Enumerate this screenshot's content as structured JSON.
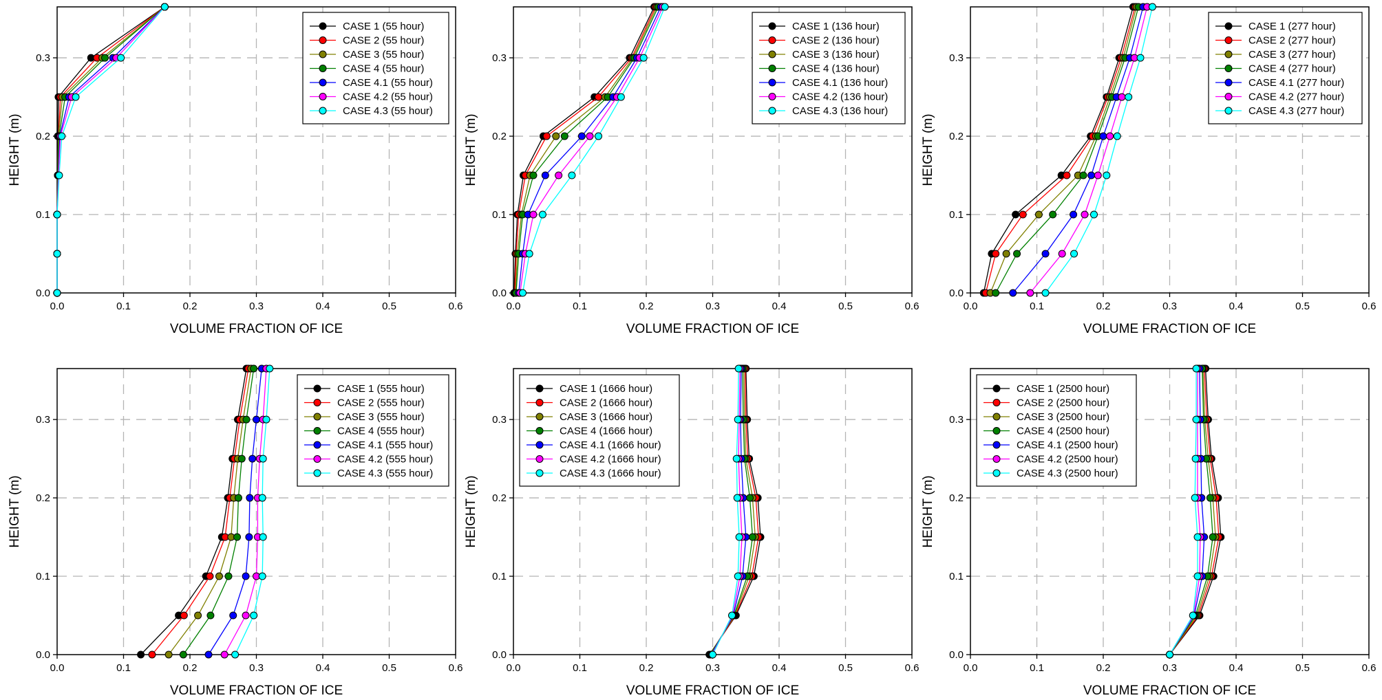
{
  "series_names": [
    "CASE 1",
    "CASE 2",
    "CASE 3",
    "CASE 4",
    "CASE 4.1",
    "CASE 4.2",
    "CASE 4.3"
  ],
  "series_colors": [
    "#000000",
    "#ff0000",
    "#808000",
    "#008000",
    "#0000ff",
    "#ff00ff",
    "#00ffff"
  ],
  "chart_data": [
    {
      "type": "line",
      "xlabel": "VOLUME FRACTION OF ICE",
      "ylabel": "HEIGHT (m)",
      "xlim": [
        0,
        0.6
      ],
      "ylim": [
        0,
        0.365
      ],
      "xticks": [
        "0.0",
        "0.1",
        "0.2",
        "0.3",
        "0.4",
        "0.5",
        "0.6"
      ],
      "yticks": [
        "0.0",
        "0.1",
        "0.2",
        "0.3"
      ],
      "grid": true,
      "legend_position": "top-right",
      "y": [
        0.0,
        0.05,
        0.1,
        0.15,
        0.2,
        0.25,
        0.3,
        0.365
      ],
      "series": [
        {
          "name": "CASE 1 (55 hour)",
          "x": [
            0,
            0,
            0,
            0.001,
            0.001,
            0.002,
            0.051,
            0.162
          ]
        },
        {
          "name": "CASE 2 (55 hour)",
          "x": [
            0,
            0,
            0,
            0.001,
            0.002,
            0.005,
            0.06,
            0.162
          ]
        },
        {
          "name": "CASE 3 (55 hour)",
          "x": [
            0,
            0,
            0,
            0.001,
            0.002,
            0.008,
            0.068,
            0.162
          ]
        },
        {
          "name": "CASE 4 (55 hour)",
          "x": [
            0,
            0,
            0,
            0.001,
            0.003,
            0.012,
            0.072,
            0.162
          ]
        },
        {
          "name": "CASE 4.1 (55 hour)",
          "x": [
            0,
            0,
            0,
            0.002,
            0.004,
            0.018,
            0.084,
            0.162
          ]
        },
        {
          "name": "CASE 4.2 (55 hour)",
          "x": [
            0,
            0,
            0,
            0.002,
            0.005,
            0.022,
            0.089,
            0.162
          ]
        },
        {
          "name": "CASE 4.3 (55 hour)",
          "x": [
            0,
            0,
            0,
            0.003,
            0.007,
            0.028,
            0.096,
            0.162
          ]
        }
      ]
    },
    {
      "type": "line",
      "xlabel": "VOLUME FRACTION OF ICE",
      "ylabel": "HEIGHT (m)",
      "xlim": [
        0,
        0.6
      ],
      "ylim": [
        0,
        0.365
      ],
      "xticks": [
        "0.0",
        "0.1",
        "0.2",
        "0.3",
        "0.4",
        "0.5",
        "0.6"
      ],
      "yticks": [
        "0.0",
        "0.1",
        "0.2",
        "0.3"
      ],
      "grid": true,
      "legend_position": "top-right",
      "y": [
        0.0,
        0.05,
        0.1,
        0.15,
        0.2,
        0.25,
        0.3,
        0.365
      ],
      "series": [
        {
          "name": "CASE 1 (136 hour)",
          "x": [
            0.001,
            0.003,
            0.006,
            0.015,
            0.045,
            0.122,
            0.175,
            0.212
          ]
        },
        {
          "name": "CASE 2 (136 hour)",
          "x": [
            0.002,
            0.004,
            0.008,
            0.018,
            0.05,
            0.128,
            0.178,
            0.214
          ]
        },
        {
          "name": "CASE 3 (136 hour)",
          "x": [
            0.003,
            0.006,
            0.012,
            0.025,
            0.064,
            0.138,
            0.18,
            0.216
          ]
        },
        {
          "name": "CASE 4 (136 hour)",
          "x": [
            0.004,
            0.008,
            0.014,
            0.03,
            0.077,
            0.142,
            0.182,
            0.218
          ]
        },
        {
          "name": "CASE 4.1 (136 hour)",
          "x": [
            0.008,
            0.014,
            0.022,
            0.048,
            0.103,
            0.15,
            0.186,
            0.222
          ]
        },
        {
          "name": "CASE 4.2 (136 hour)",
          "x": [
            0.01,
            0.018,
            0.03,
            0.068,
            0.115,
            0.156,
            0.19,
            0.225
          ]
        },
        {
          "name": "CASE 4.3 (136 hour)",
          "x": [
            0.014,
            0.024,
            0.044,
            0.088,
            0.128,
            0.162,
            0.196,
            0.228
          ]
        }
      ]
    },
    {
      "type": "line",
      "xlabel": "VOLUME FRACTION OF ICE",
      "ylabel": "HEIGHT (m)",
      "xlim": [
        0,
        0.6
      ],
      "ylim": [
        0,
        0.365
      ],
      "xticks": [
        "0.0",
        "0.1",
        "0.2",
        "0.3",
        "0.4",
        "0.5",
        "0.6"
      ],
      "yticks": [
        "0.0",
        "0.1",
        "0.2",
        "0.3"
      ],
      "grid": true,
      "legend_position": "top-right",
      "y": [
        0.0,
        0.05,
        0.1,
        0.15,
        0.2,
        0.25,
        0.3,
        0.365
      ],
      "series": [
        {
          "name": "CASE 1 (277 hour)",
          "x": [
            0.02,
            0.032,
            0.068,
            0.137,
            0.181,
            0.205,
            0.224,
            0.245
          ]
        },
        {
          "name": "CASE 2 (277 hour)",
          "x": [
            0.023,
            0.038,
            0.079,
            0.145,
            0.184,
            0.207,
            0.227,
            0.248
          ]
        },
        {
          "name": "CASE 3 (277 hour)",
          "x": [
            0.03,
            0.054,
            0.103,
            0.162,
            0.189,
            0.21,
            0.23,
            0.25
          ]
        },
        {
          "name": "CASE 4 (277 hour)",
          "x": [
            0.038,
            0.07,
            0.124,
            0.17,
            0.192,
            0.213,
            0.233,
            0.253
          ]
        },
        {
          "name": "CASE 4.1 (277 hour)",
          "x": [
            0.064,
            0.113,
            0.155,
            0.182,
            0.2,
            0.22,
            0.24,
            0.26
          ]
        },
        {
          "name": "CASE 4.2 (277 hour)",
          "x": [
            0.09,
            0.138,
            0.172,
            0.192,
            0.21,
            0.228,
            0.247,
            0.266
          ]
        },
        {
          "name": "CASE 4.3 (277 hour)",
          "x": [
            0.113,
            0.156,
            0.186,
            0.205,
            0.221,
            0.238,
            0.256,
            0.274
          ]
        }
      ]
    },
    {
      "type": "line",
      "xlabel": "VOLUME FRACTION OF ICE",
      "ylabel": "HEIGHT (m)",
      "xlim": [
        0,
        0.6
      ],
      "ylim": [
        0,
        0.365
      ],
      "xticks": [
        "0.0",
        "0.1",
        "0.2",
        "0.3",
        "0.4",
        "0.5",
        "0.6"
      ],
      "yticks": [
        "0.0",
        "0.1",
        "0.2",
        "0.3"
      ],
      "grid": true,
      "legend_position": "top-right",
      "y": [
        0.0,
        0.05,
        0.1,
        0.15,
        0.2,
        0.25,
        0.3,
        0.365
      ],
      "series": [
        {
          "name": "CASE 1 (555 hour)",
          "x": [
            0.126,
            0.183,
            0.224,
            0.248,
            0.257,
            0.264,
            0.272,
            0.285
          ]
        },
        {
          "name": "CASE 2 (555 hour)",
          "x": [
            0.143,
            0.191,
            0.23,
            0.253,
            0.26,
            0.267,
            0.275,
            0.288
          ]
        },
        {
          "name": "CASE 3 (555 hour)",
          "x": [
            0.168,
            0.212,
            0.244,
            0.262,
            0.266,
            0.272,
            0.28,
            0.292
          ]
        },
        {
          "name": "CASE 4 (555 hour)",
          "x": [
            0.19,
            0.231,
            0.258,
            0.271,
            0.273,
            0.278,
            0.285,
            0.296
          ]
        },
        {
          "name": "CASE 4.1 (555 hour)",
          "x": [
            0.228,
            0.265,
            0.284,
            0.289,
            0.29,
            0.294,
            0.3,
            0.308
          ]
        },
        {
          "name": "CASE 4.2 (555 hour)",
          "x": [
            0.252,
            0.284,
            0.3,
            0.302,
            0.302,
            0.305,
            0.31,
            0.315
          ]
        },
        {
          "name": "CASE 4.3 (555 hour)",
          "x": [
            0.268,
            0.296,
            0.309,
            0.31,
            0.309,
            0.31,
            0.315,
            0.32
          ]
        }
      ]
    },
    {
      "type": "line",
      "xlabel": "VOLUME FRACTION OF ICE",
      "ylabel": "HEIGHT (m)",
      "xlim": [
        0,
        0.6
      ],
      "ylim": [
        0,
        0.365
      ],
      "xticks": [
        "0.0",
        "0.1",
        "0.2",
        "0.3",
        "0.4",
        "0.5",
        "0.6"
      ],
      "yticks": [
        "0.0",
        "0.1",
        "0.2",
        "0.3"
      ],
      "grid": true,
      "legend_position": "top-left",
      "y": [
        0.0,
        0.05,
        0.1,
        0.15,
        0.2,
        0.25,
        0.3,
        0.365
      ],
      "series": [
        {
          "name": "CASE 1 (1666 hour)",
          "x": [
            0.295,
            0.335,
            0.362,
            0.372,
            0.368,
            0.355,
            0.352,
            0.35
          ]
        },
        {
          "name": "CASE 2 (1666 hour)",
          "x": [
            0.296,
            0.334,
            0.359,
            0.369,
            0.365,
            0.353,
            0.35,
            0.349
          ]
        },
        {
          "name": "CASE 3 (1666 hour)",
          "x": [
            0.296,
            0.333,
            0.355,
            0.364,
            0.36,
            0.35,
            0.348,
            0.347
          ]
        },
        {
          "name": "CASE 4 (1666 hour)",
          "x": [
            0.297,
            0.332,
            0.352,
            0.36,
            0.356,
            0.348,
            0.346,
            0.345
          ]
        },
        {
          "name": "CASE 4.1 (1666 hour)",
          "x": [
            0.298,
            0.331,
            0.345,
            0.35,
            0.346,
            0.343,
            0.342,
            0.343
          ]
        },
        {
          "name": "CASE 4.2 (1666 hour)",
          "x": [
            0.299,
            0.33,
            0.341,
            0.344,
            0.341,
            0.339,
            0.34,
            0.341
          ]
        },
        {
          "name": "CASE 4.3 (1666 hour)",
          "x": [
            0.3,
            0.329,
            0.338,
            0.34,
            0.337,
            0.336,
            0.338,
            0.339
          ]
        }
      ]
    },
    {
      "type": "line",
      "xlabel": "VOLUME FRACTION OF ICE",
      "ylabel": "HEIGHT (m)",
      "xlim": [
        0,
        0.6
      ],
      "ylim": [
        0,
        0.365
      ],
      "xticks": [
        "0.0",
        "0.1",
        "0.2",
        "0.3",
        "0.4",
        "0.5",
        "0.6"
      ],
      "yticks": [
        "0.0",
        "0.1",
        "0.2",
        "0.3"
      ],
      "grid": true,
      "legend_position": "top-left",
      "y": [
        0.0,
        0.05,
        0.1,
        0.15,
        0.2,
        0.25,
        0.3,
        0.365
      ],
      "series": [
        {
          "name": "CASE 1 (2500 hour)",
          "x": [
            0.3,
            0.345,
            0.366,
            0.377,
            0.373,
            0.363,
            0.358,
            0.354
          ]
        },
        {
          "name": "CASE 2 (2500 hour)",
          "x": [
            0.3,
            0.343,
            0.363,
            0.374,
            0.37,
            0.361,
            0.356,
            0.352
          ]
        },
        {
          "name": "CASE 3 (2500 hour)",
          "x": [
            0.3,
            0.341,
            0.36,
            0.369,
            0.365,
            0.358,
            0.353,
            0.35
          ]
        },
        {
          "name": "CASE 4 (2500 hour)",
          "x": [
            0.3,
            0.339,
            0.357,
            0.365,
            0.361,
            0.355,
            0.351,
            0.349
          ]
        },
        {
          "name": "CASE 4.1 (2500 hour)",
          "x": [
            0.3,
            0.337,
            0.349,
            0.352,
            0.348,
            0.347,
            0.346,
            0.345
          ]
        },
        {
          "name": "CASE 4.2 (2500 hour)",
          "x": [
            0.3,
            0.336,
            0.345,
            0.346,
            0.342,
            0.342,
            0.342,
            0.342
          ]
        },
        {
          "name": "CASE 4.3 (2500 hour)",
          "x": [
            0.3,
            0.335,
            0.342,
            0.342,
            0.338,
            0.339,
            0.34,
            0.34
          ]
        }
      ]
    }
  ]
}
